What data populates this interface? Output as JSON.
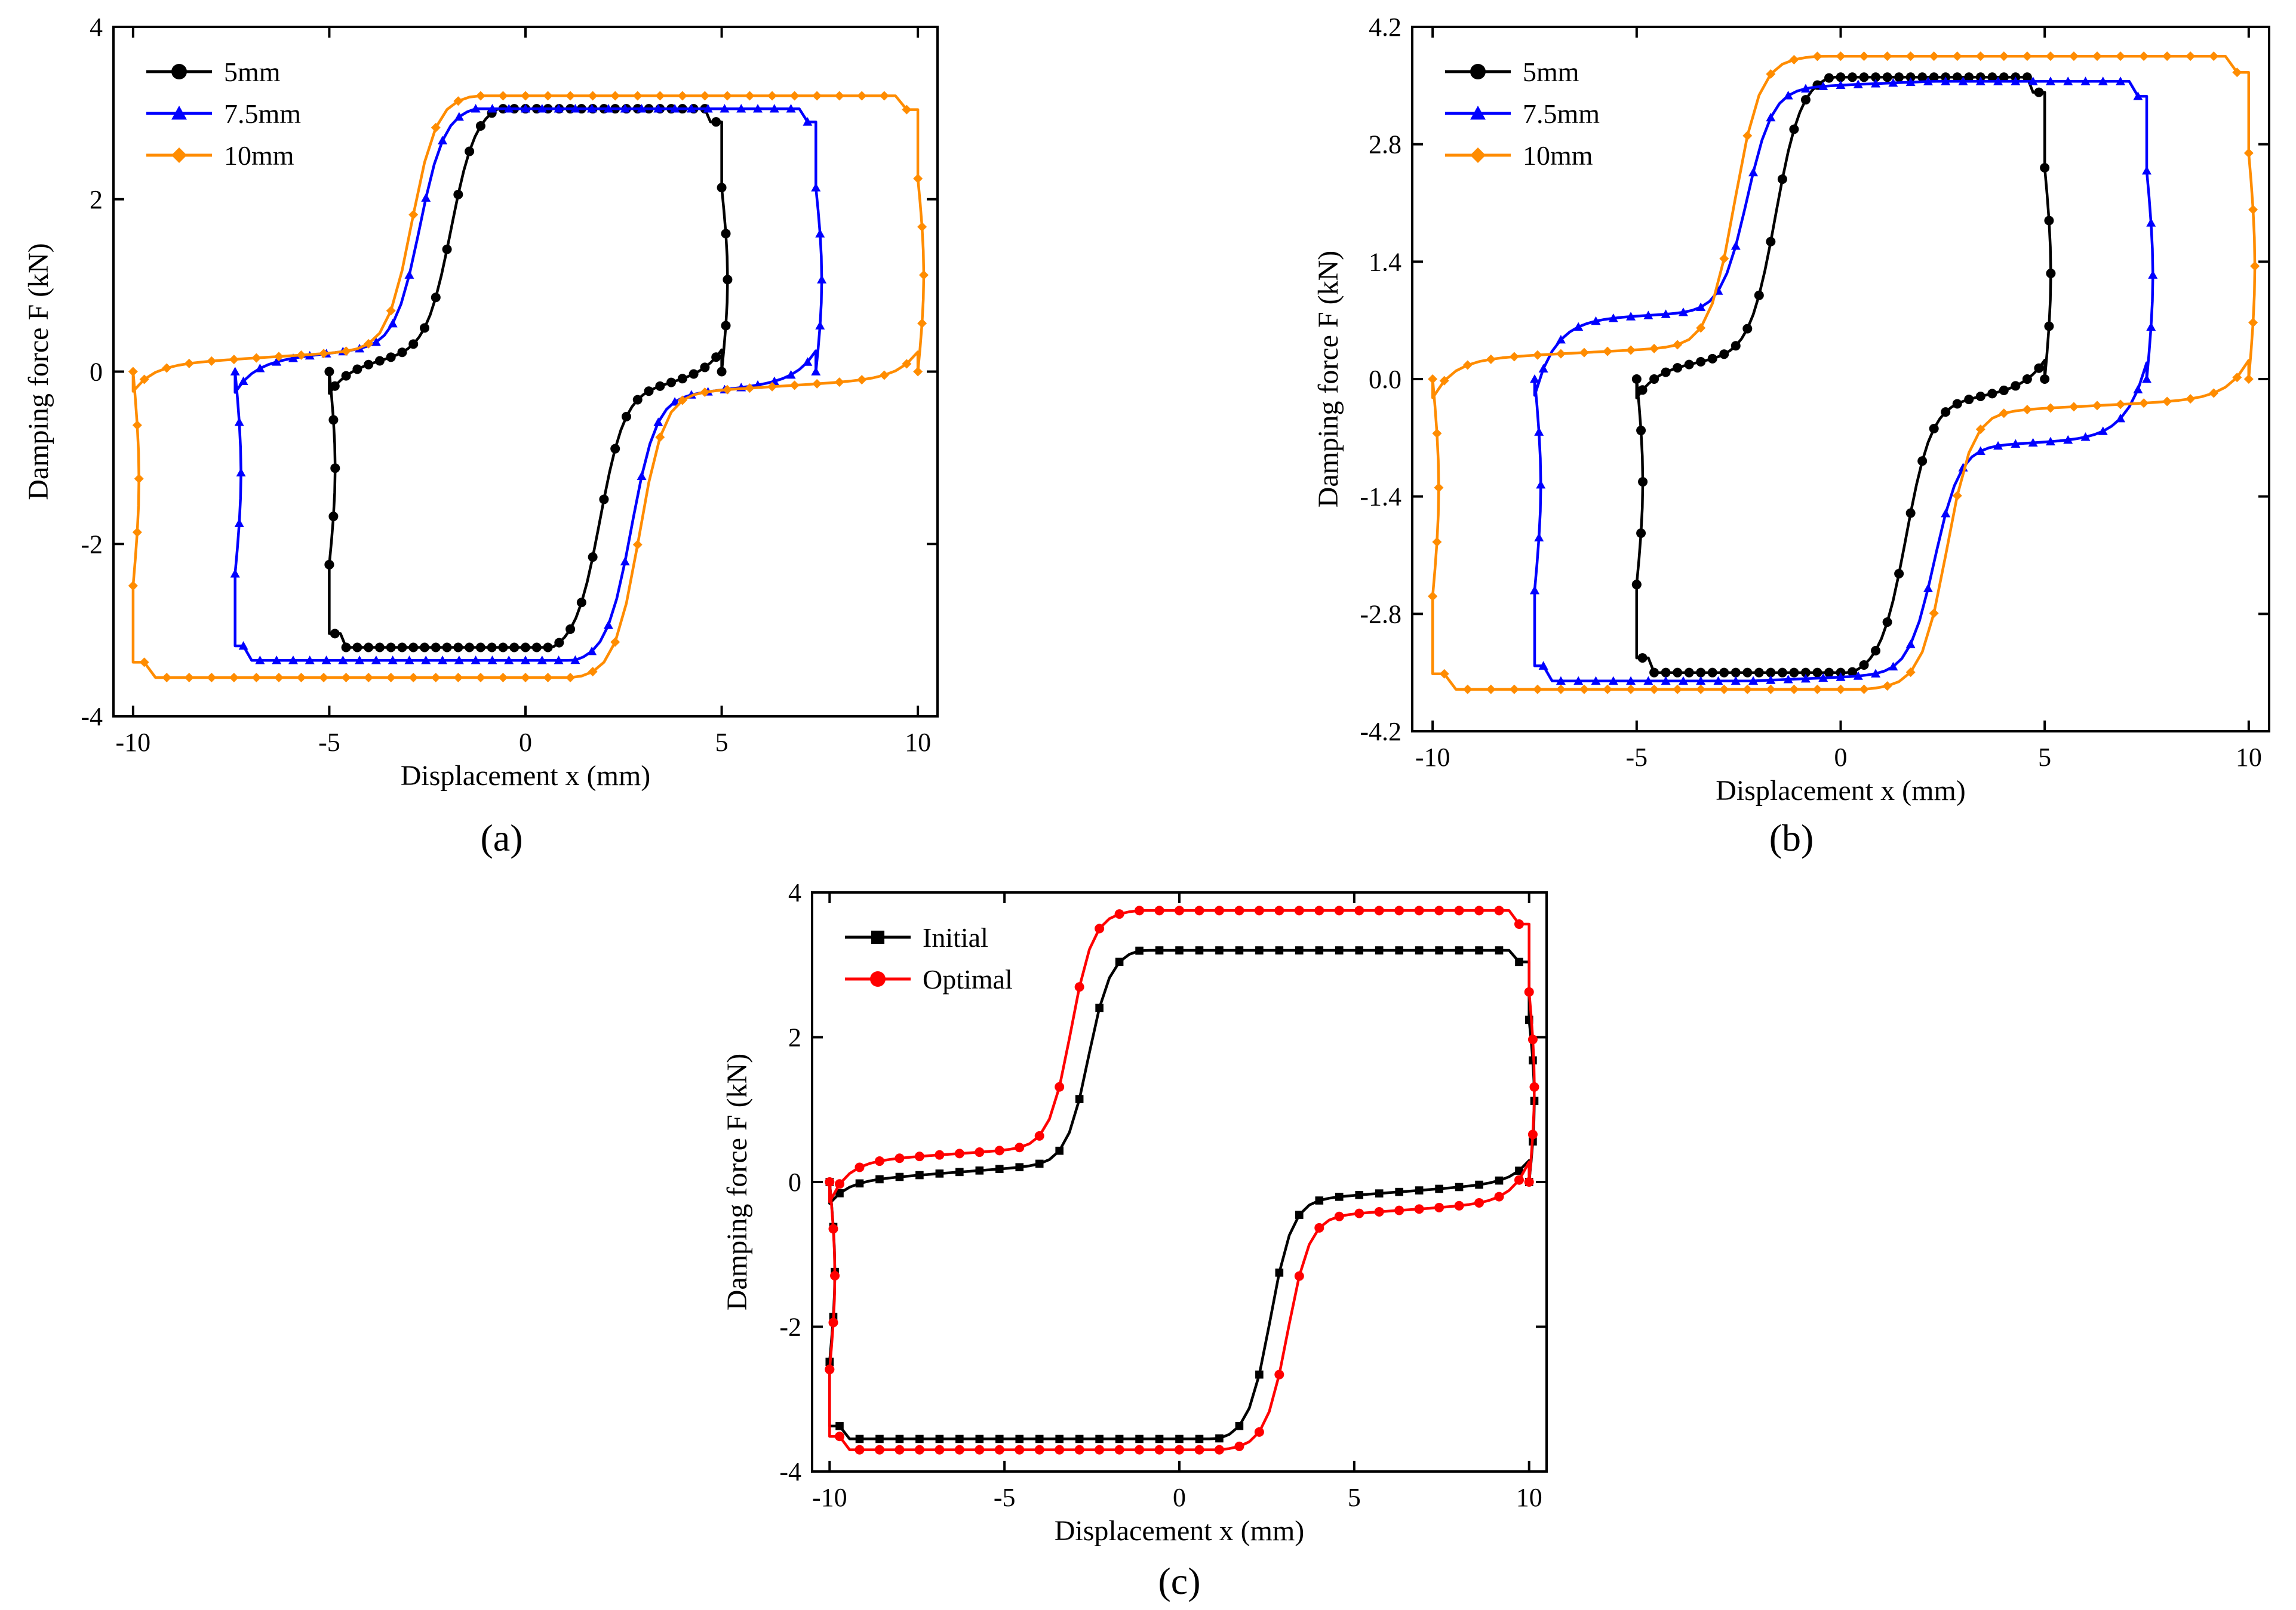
{
  "chart_data": [
    {
      "id": "a",
      "panel_label": "(a)",
      "type": "line",
      "xlabel": "Displacement x (mm)",
      "ylabel": "Damping force F (kN)",
      "xlim": [
        -10.5,
        10.5
      ],
      "ylim": [
        -4,
        4
      ],
      "xticks": [
        -10,
        -5,
        0,
        5,
        10
      ],
      "yticks": [
        -4,
        -2,
        0,
        2,
        4
      ],
      "ytick_labels": [
        "-4",
        "-2",
        "0",
        "2",
        "4"
      ],
      "legend_position": "top-left",
      "series": [
        {
          "name": "5mm",
          "color": "#000000",
          "marker": "circle",
          "amp": 5,
          "fmax": 3.05,
          "fmin": -3.2,
          "plateau": 0.3,
          "slope": 0.9,
          "dx": 2.2
        },
        {
          "name": "7.5mm",
          "color": "#0000ff",
          "marker": "triangle",
          "amp": 7.4,
          "fmax": 3.05,
          "fmin": -3.35,
          "plateau": 0.35,
          "slope": 0.55,
          "dx": 3.0
        },
        {
          "name": "10mm",
          "color": "#ff8c00",
          "marker": "diamond",
          "amp": 10,
          "fmax": 3.2,
          "fmin": -3.55,
          "plateau": 0.3,
          "slope": 0.35,
          "dx": 3.2
        }
      ]
    },
    {
      "id": "b",
      "panel_label": "(b)",
      "type": "line",
      "xlabel": "Displacement x (mm)",
      "ylabel": "Damping force F (kN)",
      "xlim": [
        -10.5,
        10.5
      ],
      "ylim": [
        -4.2,
        4.2
      ],
      "xticks": [
        -10,
        -5,
        0,
        5,
        10
      ],
      "yticks": [
        -4.2,
        -2.8,
        -1.4,
        0,
        1.4,
        2.8,
        4.2
      ],
      "ytick_labels": [
        "-4.2",
        "-2.8",
        "-1.4",
        "0.0",
        "1.4",
        "2.8",
        "4.2"
      ],
      "legend_position": "top-left",
      "series": [
        {
          "name": "5mm",
          "color": "#000000",
          "marker": "circle",
          "amp": 5,
          "fmax": 3.6,
          "fmin": -3.5,
          "plateau": 0.35,
          "slope": 0.7,
          "dx": 1.9
        },
        {
          "name": "7.5mm",
          "color": "#0000ff",
          "marker": "triangle",
          "amp": 7.5,
          "fmax": 3.55,
          "fmin": -3.6,
          "plateau": 0.9,
          "slope": 0.25,
          "dx": 2.6
        },
        {
          "name": "10mm",
          "color": "#ff8c00",
          "marker": "diamond",
          "amp": 10,
          "fmax": 3.85,
          "fmin": -3.7,
          "plateau": 0.45,
          "slope": 0.3,
          "dx": 2.9
        }
      ]
    },
    {
      "id": "c",
      "panel_label": "(c)",
      "type": "line",
      "xlabel": "Displacement x (mm)",
      "ylabel": "Damping force F (kN)",
      "xlim": [
        -10.5,
        10.5
      ],
      "ylim": [
        -4,
        4
      ],
      "xticks": [
        -10,
        -5,
        0,
        5,
        10
      ],
      "yticks": [
        -4,
        -2,
        0,
        2,
        4
      ],
      "ytick_labels": [
        "-4",
        "-2",
        "0",
        "2",
        "4"
      ],
      "legend_position": "top-left",
      "series": [
        {
          "name": "Initial",
          "color": "#000000",
          "marker": "square",
          "amp": 10,
          "fmax": 3.2,
          "fmin": -3.55,
          "plateau": 0.3,
          "slope": 0.45,
          "dx": 2.9
        },
        {
          "name": "Optimal",
          "color": "#ff0000",
          "marker": "circle",
          "amp": 10,
          "fmax": 3.75,
          "fmin": -3.7,
          "plateau": 0.55,
          "slope": 0.4,
          "dx": 3.4
        }
      ]
    }
  ]
}
